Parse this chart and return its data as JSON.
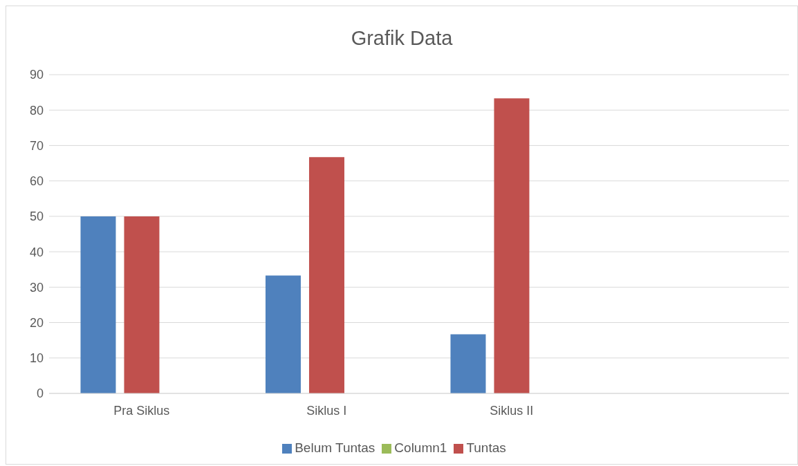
{
  "chart_data": {
    "type": "bar",
    "title": "Grafik Data",
    "categories": [
      "Pra Siklus",
      "Siklus I",
      "Siklus II",
      null
    ],
    "series": [
      {
        "name": "Belum Tuntas",
        "color": "#4f81bd",
        "values": [
          50,
          33.3,
          16.7,
          null
        ]
      },
      {
        "name": "Tuntas",
        "color": "#c0504d",
        "values": [
          50,
          66.7,
          83.3,
          null
        ]
      },
      {
        "name": "Column1",
        "color": "#9bbb59",
        "values": [
          null,
          null,
          null,
          null
        ]
      }
    ],
    "ylim": [
      0,
      90
    ],
    "yticks": [
      0,
      10,
      20,
      30,
      40,
      50,
      60,
      70,
      80,
      90
    ],
    "grid": "y",
    "legend": "bottom"
  }
}
